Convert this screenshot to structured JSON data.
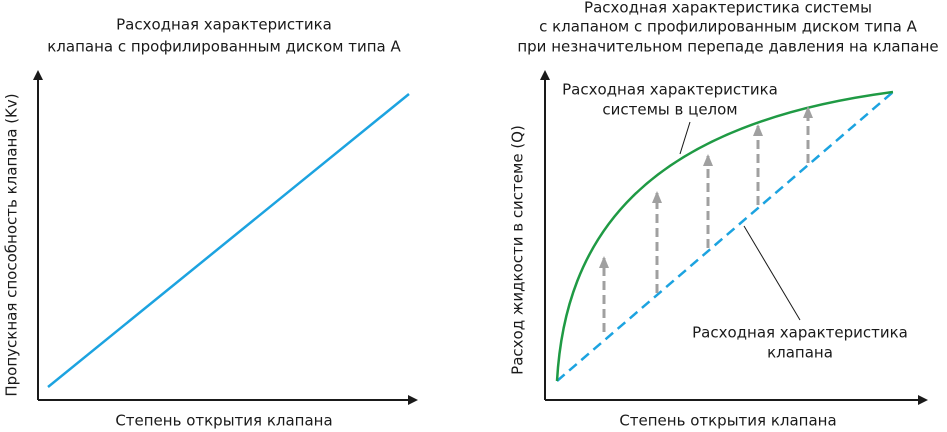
{
  "left": {
    "title": [
      "Расходная характеристика",
      "клапана с профилированным диском типа А"
    ],
    "x_label": "Степень открытия клапана",
    "y_label": "Пропускная способность клапана (Kv)"
  },
  "right": {
    "title": [
      "Расходная характеристика системы",
      "с клапаном с профилированным диском типа А",
      "при незначительном перепаде давления на клапане"
    ],
    "x_label": "Степень открытия клапана",
    "y_label": "Расход жидкости в системе (Q)",
    "system_label": [
      "Расходная характеристика",
      "системы в целом"
    ],
    "valve_label": [
      "Расходная характеристика",
      "клапана"
    ]
  }
}
